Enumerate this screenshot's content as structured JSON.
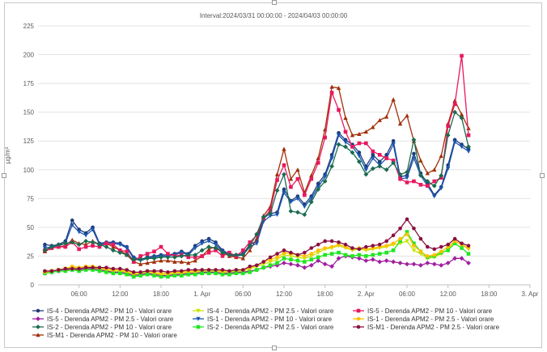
{
  "chart_data": {
    "type": "line",
    "title": "Interval:2024/03/31 00:00:00 - 2024/04/03 00:00:00",
    "ylabel": "µg/m³",
    "ylim": [
      0,
      225
    ],
    "yticks": [
      0,
      25,
      50,
      75,
      100,
      125,
      150,
      175,
      200,
      225
    ],
    "xlim": [
      0,
      72
    ],
    "xticks": [
      {
        "v": 6,
        "label": "06:00"
      },
      {
        "v": 12,
        "label": "12:00"
      },
      {
        "v": 18,
        "label": "18:00"
      },
      {
        "v": 24,
        "label": "1. Apr"
      },
      {
        "v": 30,
        "label": "06:00"
      },
      {
        "v": 36,
        "label": "12:00"
      },
      {
        "v": 42,
        "label": "18:00"
      },
      {
        "v": 48,
        "label": "2. Apr"
      },
      {
        "v": 54,
        "label": "06:00"
      },
      {
        "v": 60,
        "label": "12:00"
      },
      {
        "v": 66,
        "label": "18:00"
      },
      {
        "v": 72,
        "label": "3. Apr"
      }
    ],
    "x_start": 1,
    "grid": true,
    "legend": "bottom",
    "series": [
      {
        "name": "IS-4 - Derenda APM2 - PM 10 - Valori orare",
        "color": "#1f3d7a",
        "marker": "circle",
        "values": [
          35,
          34,
          35,
          38,
          56,
          48,
          45,
          50,
          36,
          37,
          37,
          36,
          33,
          24,
          22,
          24,
          25,
          26,
          26,
          27,
          29,
          27,
          34,
          38,
          40,
          37,
          30,
          27,
          26,
          27,
          35,
          38,
          58,
          62,
          63,
          83,
          73,
          77,
          70,
          77,
          88,
          96,
          113,
          132,
          126,
          122,
          115,
          103,
          113,
          107,
          113,
          125,
          94,
          95,
          114,
          97,
          88,
          78,
          85,
          104,
          126,
          122,
          118
        ]
      },
      {
        "name": "IS-5 - Derenda APM2 - PM 2.5 - Valori orare",
        "color": "#a020a0",
        "marker": "diamond",
        "values": [
          10,
          11,
          12,
          13,
          14,
          13,
          14,
          14,
          13,
          12,
          11,
          11,
          10,
          8,
          9,
          10,
          9,
          8,
          8,
          9,
          9,
          10,
          10,
          11,
          11,
          11,
          10,
          10,
          11,
          11,
          12,
          13,
          15,
          16,
          17,
          19,
          18,
          17,
          15,
          17,
          21,
          18,
          16,
          23,
          25,
          24,
          23,
          21,
          22,
          20,
          21,
          20,
          19,
          18,
          18,
          17,
          19,
          18,
          17,
          19,
          23,
          23,
          19
        ]
      },
      {
        "name": "IS-M1 - Derenda APM2 - PM 10 - Valori orare",
        "color": "#a0300a",
        "marker": "triangle",
        "values": [
          29,
          32,
          33,
          34,
          39,
          36,
          35,
          38,
          35,
          36,
          33,
          30,
          26,
          20,
          18,
          19,
          20,
          21,
          21,
          20,
          20,
          19,
          21,
          25,
          31,
          33,
          28,
          25,
          24,
          23,
          30,
          40,
          60,
          68,
          96,
          118,
          92,
          100,
          80,
          95,
          110,
          135,
          172,
          171,
          145,
          130,
          131,
          133,
          137,
          143,
          146,
          161,
          140,
          147,
          125,
          108,
          97,
          100,
          112,
          140,
          160,
          148,
          136
        ]
      },
      {
        "name": "IS-4 - Derenda APM2 - PM 2.5 - Valori orare",
        "color": "#c8e600",
        "marker": "triangle-down",
        "values": [
          11,
          12,
          13,
          14,
          15,
          14,
          15,
          15,
          14,
          13,
          12,
          12,
          11,
          9,
          10,
          11,
          10,
          9,
          9,
          10,
          10,
          11,
          11,
          12,
          12,
          12,
          11,
          11,
          12,
          12,
          14,
          16,
          18,
          20,
          22,
          26,
          25,
          24,
          23,
          25,
          28,
          31,
          32,
          34,
          32,
          30,
          31,
          30,
          31,
          32,
          33,
          35,
          36,
          38,
          30,
          27,
          23,
          24,
          27,
          31,
          38,
          35,
          31
        ]
      },
      {
        "name": "IS-1 - Derenda APM2 - PM 10 - Valori orare",
        "color": "#1a56b0",
        "marker": "triangle-down",
        "values": [
          32,
          33,
          34,
          36,
          52,
          46,
          43,
          48,
          35,
          36,
          36,
          35,
          32,
          23,
          21,
          23,
          24,
          25,
          25,
          26,
          28,
          26,
          32,
          36,
          38,
          35,
          29,
          26,
          25,
          26,
          33,
          36,
          55,
          60,
          61,
          80,
          72,
          75,
          68,
          75,
          85,
          94,
          110,
          130,
          124,
          120,
          112,
          100,
          110,
          104,
          110,
          122,
          92,
          93,
          110,
          95,
          86,
          77,
          84,
          101,
          124,
          120,
          116
        ]
      },
      {
        "name": "IS-2 - Derenda APM2 - PM 2.5 - Valori orare",
        "color": "#22e622",
        "marker": "square",
        "values": [
          10,
          11,
          12,
          12,
          13,
          12,
          13,
          13,
          12,
          11,
          10,
          10,
          9,
          7,
          8,
          9,
          8,
          7,
          7,
          8,
          8,
          9,
          9,
          10,
          10,
          10,
          9,
          9,
          10,
          10,
          11,
          13,
          15,
          17,
          19,
          23,
          22,
          21,
          20,
          22,
          24,
          26,
          27,
          28,
          26,
          25,
          26,
          25,
          26,
          27,
          28,
          30,
          38,
          46,
          36,
          29,
          24,
          25,
          28,
          30,
          36,
          32,
          27
        ]
      },
      {
        "name": "IS-5 - Derenda APM2 - PM 10 - Valori orare",
        "color": "#e8185f",
        "marker": "square",
        "values": [
          30,
          32,
          33,
          33,
          37,
          31,
          33,
          34,
          33,
          36,
          35,
          30,
          29,
          20,
          25,
          27,
          29,
          33,
          27,
          25,
          26,
          24,
          24,
          25,
          28,
          30,
          25,
          28,
          25,
          30,
          37,
          43,
          58,
          65,
          91,
          104,
          85,
          92,
          78,
          92,
          106,
          128,
          167,
          152,
          133,
          120,
          123,
          123,
          116,
          113,
          110,
          108,
          92,
          89,
          90,
          87,
          86,
          90,
          93,
          138,
          157,
          199,
          130
        ]
      },
      {
        "name": "IS-1 - Derenda APM2 - PM 2.5 - Valori orare",
        "color": "#ffc000",
        "marker": "circle",
        "values": [
          11,
          12,
          13,
          14,
          16,
          15,
          16,
          16,
          15,
          14,
          13,
          13,
          12,
          10,
          11,
          12,
          11,
          10,
          10,
          11,
          11,
          12,
          12,
          13,
          13,
          13,
          12,
          12,
          13,
          13,
          15,
          17,
          20,
          22,
          24,
          28,
          27,
          26,
          25,
          27,
          30,
          32,
          33,
          35,
          33,
          31,
          32,
          31,
          32,
          33,
          34,
          36,
          40,
          44,
          34,
          29,
          25,
          26,
          29,
          33,
          38,
          35,
          32
        ]
      },
      {
        "name": "IS-2 - Derenda APM2 - PM 10 - Valori orare",
        "color": "#1a6b50",
        "marker": "diamond",
        "values": [
          30,
          33,
          35,
          36,
          37,
          35,
          38,
          37,
          35,
          33,
          30,
          28,
          26,
          22,
          22,
          23,
          23,
          24,
          24,
          24,
          25,
          26,
          26,
          30,
          33,
          32,
          28,
          26,
          26,
          26,
          34,
          44,
          59,
          62,
          82,
          96,
          64,
          63,
          61,
          72,
          83,
          90,
          103,
          122,
          120,
          115,
          107,
          96,
          101,
          103,
          100,
          106,
          96,
          98,
          126,
          95,
          90,
          86,
          95,
          130,
          150,
          145,
          120
        ]
      },
      {
        "name": "IS-M1 - Derenda APM2 - PM 2.5 - Valori orare",
        "color": "#8a1040",
        "marker": "circle",
        "values": [
          12,
          12,
          13,
          14,
          14,
          14,
          15,
          15,
          15,
          15,
          14,
          14,
          13,
          11,
          11,
          12,
          12,
          12,
          11,
          12,
          12,
          13,
          13,
          13,
          13,
          13,
          13,
          12,
          13,
          13,
          16,
          17,
          20,
          24,
          27,
          30,
          28,
          26,
          28,
          32,
          35,
          38,
          38,
          37,
          35,
          32,
          31,
          33,
          34,
          35,
          38,
          43,
          49,
          57,
          49,
          40,
          33,
          31,
          33,
          35,
          40,
          36,
          34
        ]
      }
    ],
    "legend_order": [
      0,
      3,
      6,
      1,
      4,
      7,
      8,
      5,
      9,
      2
    ]
  }
}
